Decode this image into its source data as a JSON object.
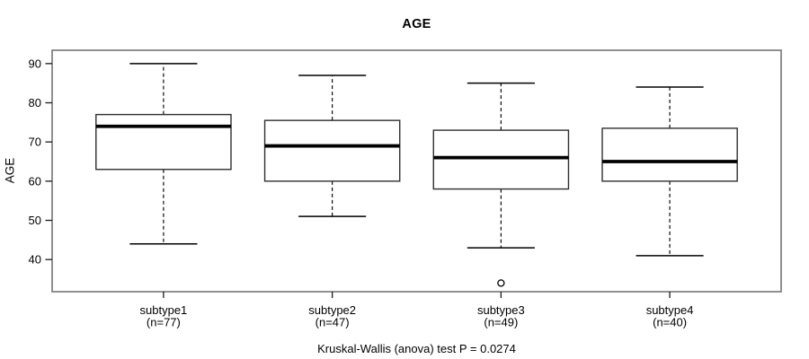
{
  "colors": {
    "background": "#ffffff",
    "line": "#000000",
    "box_stroke": "#2f2f2f",
    "plot_border": "#757575",
    "tick": "#1a1a1a",
    "text": "#000000"
  },
  "chart_data": {
    "type": "boxplot",
    "title": "AGE",
    "ylabel": "AGE",
    "xlabel": "",
    "caption": "Kruskal-Wallis (anova) test P = 0.0274",
    "yticks": [
      40,
      50,
      60,
      70,
      80,
      90
    ],
    "ylim": [
      31.8,
      93.4
    ],
    "xlim": [
      0.34,
      4.66
    ],
    "box_width": 0.8,
    "grid": false,
    "categories": [
      "subtype1",
      "subtype2",
      "subtype3",
      "subtype4"
    ],
    "series": [
      {
        "name": "subtype1",
        "count_label": "(n=77)",
        "position": 1,
        "whisker_low": 44,
        "q1": 63,
        "median": 74,
        "q3": 77,
        "whisker_high": 90,
        "outliers": []
      },
      {
        "name": "subtype2",
        "count_label": "(n=47)",
        "position": 2,
        "whisker_low": 51,
        "q1": 60,
        "median": 69,
        "q3": 75.5,
        "whisker_high": 87,
        "outliers": []
      },
      {
        "name": "subtype3",
        "count_label": "(n=49)",
        "position": 3,
        "whisker_low": 43,
        "q1": 58,
        "median": 66,
        "q3": 73,
        "whisker_high": 85,
        "outliers": [
          34
        ]
      },
      {
        "name": "subtype4",
        "count_label": "(n=40)",
        "position": 4,
        "whisker_low": 41,
        "q1": 60,
        "median": 65,
        "q3": 73.5,
        "whisker_high": 84,
        "outliers": []
      }
    ]
  }
}
